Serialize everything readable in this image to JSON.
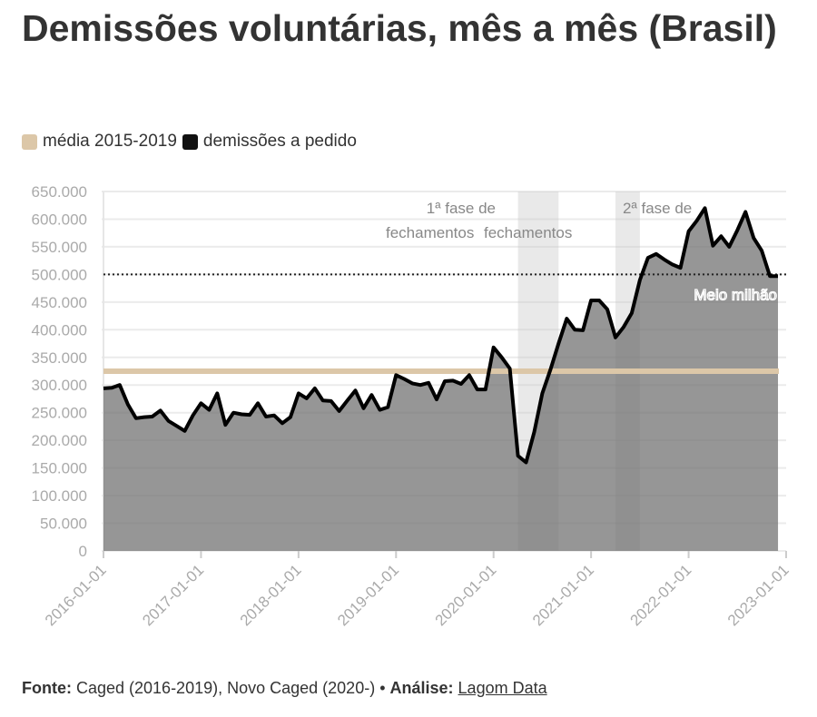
{
  "chart_data": {
    "type": "area",
    "title": "Demissões voluntárias, mês a mês (Brasil)",
    "legend": [
      {
        "label": "média 2015-2019",
        "color": "#dcc7a8"
      },
      {
        "label": "demissões a pedido",
        "color": "#111111"
      }
    ],
    "legend_placement": "top-left",
    "ylim": [
      0,
      650000
    ],
    "y_ticks": [
      0,
      50000,
      100000,
      150000,
      200000,
      250000,
      300000,
      350000,
      400000,
      450000,
      500000,
      550000,
      600000,
      650000
    ],
    "y_tick_labels": [
      "0",
      "50.000",
      "100.000",
      "150.000",
      "200.000",
      "250.000",
      "300.000",
      "350.000",
      "400.000",
      "450.000",
      "500.000",
      "550.000",
      "600.000",
      "650.000"
    ],
    "x_start": "2016-01",
    "x_end": "2023-01",
    "x_tick_labels": [
      "2016-01-01",
      "2017-01-01",
      "2018-01-01",
      "2019-01-01",
      "2020-01-01",
      "2021-01-01",
      "2022-01-01",
      "2023-01-01"
    ],
    "mean_2015_2019": 325000,
    "reference_line": {
      "value": 500000,
      "label": "Meio milhão"
    },
    "shaded_periods": [
      {
        "label_line1": "1ª fase de",
        "label_line2": "fechamentos",
        "start_month": 51,
        "end_month": 56
      },
      {
        "label_line1": "2ª fase de",
        "label_line2": "fechamentos",
        "start_month": 63,
        "end_month": 66
      }
    ],
    "monthly_values": [
      294000,
      295000,
      300000,
      265000,
      240000,
      242000,
      243000,
      254000,
      235000,
      226000,
      217000,
      245000,
      267000,
      255000,
      285000,
      228000,
      250000,
      247000,
      246000,
      267000,
      243000,
      245000,
      231000,
      242000,
      285000,
      276000,
      294000,
      272000,
      271000,
      253000,
      272000,
      290000,
      258000,
      282000,
      255000,
      260000,
      318000,
      311000,
      303000,
      300000,
      304000,
      274000,
      307000,
      308000,
      302000,
      318000,
      292000,
      292000,
      368000,
      350000,
      330000,
      172000,
      160000,
      215000,
      285000,
      328000,
      375000,
      420000,
      400000,
      399000,
      453000,
      453000,
      437000,
      386000,
      405000,
      430000,
      490000,
      530000,
      537000,
      527000,
      518000,
      512000,
      578000,
      597000,
      620000,
      552000,
      569000,
      550000,
      580000,
      613000,
      566000,
      543000,
      497000,
      497000
    ]
  },
  "footer": {
    "fonte_label": "Fonte:",
    "fonte_text": " Caged (2016-2019), Novo Caged (2020-) • ",
    "analise_label": "Análise:",
    "analise_link": "Lagom Data"
  }
}
